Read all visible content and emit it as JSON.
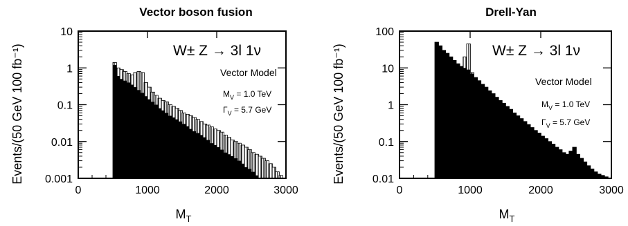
{
  "chart_data": [
    {
      "type": "bar",
      "title": "Vector boson fusion",
      "process": "W± Z → 3l 1ν",
      "model": "Vector Model",
      "mass_label": "M",
      "mass_sub": "V",
      "mass_value": " = 1.0 TeV",
      "width_label": "Γ",
      "width_sub": "V",
      "width_value": " = 5.7 GeV",
      "xlabel": "M",
      "xlabel_sub": "T",
      "ylabel": "Events/(50 GeV 100 fb⁻¹)",
      "yscale": "log",
      "xlim": [
        0,
        3000
      ],
      "ylim": [
        0.001,
        10
      ],
      "xticks": [
        "0",
        "1000",
        "2000",
        "3000"
      ],
      "yticks": [
        "10",
        "1",
        "0.1",
        "0.01",
        "0.001"
      ],
      "bin_edges_start": 500,
      "bin_width": 50,
      "series": [
        {
          "fill": "black",
          "values": [
            1.2,
            0.6,
            0.5,
            0.45,
            0.4,
            0.35,
            0.3,
            0.25,
            0.21,
            0.17,
            0.14,
            0.12,
            0.1,
            0.08,
            0.07,
            0.06,
            0.05,
            0.045,
            0.04,
            0.035,
            0.03,
            0.026,
            0.022,
            0.019,
            0.017,
            0.015,
            0.013,
            0.011,
            0.009,
            0.008,
            0.007,
            0.006,
            0.005,
            0.0045,
            0.004,
            0.0035,
            0.003,
            0.0025,
            0.002,
            0.0018,
            0.0015,
            0.0012,
            0.001,
            0.001,
            0.001,
            0.001,
            0.001,
            0.001,
            0.001,
            0.001
          ]
        },
        {
          "fill": "hatched",
          "values": [
            1.4,
            1.0,
            0.9,
            0.8,
            0.7,
            0.65,
            0.75,
            0.8,
            0.75,
            0.4,
            0.3,
            0.22,
            0.18,
            0.15,
            0.13,
            0.12,
            0.1,
            0.09,
            0.08,
            0.07,
            0.06,
            0.055,
            0.05,
            0.045,
            0.04,
            0.035,
            0.03,
            0.028,
            0.025,
            0.022,
            0.02,
            0.018,
            0.015,
            0.013,
            0.011,
            0.01,
            0.009,
            0.008,
            0.007,
            0.006,
            0.005,
            0.0045,
            0.004,
            0.0035,
            0.003,
            0.0025,
            0.002,
            0.0015,
            0.0012,
            0.001
          ]
        }
      ]
    },
    {
      "type": "bar",
      "title": "Drell-Yan",
      "process": "W± Z → 3l 1ν",
      "model": "Vector Model",
      "mass_label": "M",
      "mass_sub": "V",
      "mass_value": " = 1.0 TeV",
      "width_label": "Γ",
      "width_sub": "V",
      "width_value": " = 5.7 GeV",
      "xlabel": "M",
      "xlabel_sub": "T",
      "ylabel": "Events/(50 GeV 100 fb⁻¹)",
      "yscale": "log",
      "xlim": [
        0,
        3000
      ],
      "ylim": [
        0.01,
        100
      ],
      "xticks": [
        "0",
        "1000",
        "2000",
        "3000"
      ],
      "yticks": [
        "100",
        "10",
        "1",
        "0.1",
        "0.01"
      ],
      "bin_edges_start": 500,
      "bin_width": 50,
      "series": [
        {
          "fill": "black",
          "values": [
            50,
            40,
            30,
            25,
            20,
            16,
            13,
            11,
            10,
            9,
            7,
            5.5,
            4.5,
            3.6,
            3.0,
            2.4,
            2.0,
            1.6,
            1.3,
            1.1,
            0.9,
            0.75,
            0.6,
            0.5,
            0.42,
            0.35,
            0.29,
            0.24,
            0.2,
            0.17,
            0.14,
            0.12,
            0.1,
            0.085,
            0.07,
            0.06,
            0.05,
            0.045,
            0.055,
            0.07,
            0.045,
            0.035,
            0.028,
            0.022,
            0.018,
            0.015,
            0.013,
            0.012,
            0.011,
            0.01
          ]
        },
        {
          "fill": "hatched",
          "values": [
            50,
            40,
            30,
            25,
            20,
            16,
            13,
            11,
            20,
            45,
            7.5,
            5.5,
            4.5,
            3.6,
            3.0,
            2.4,
            2.0,
            1.6,
            1.3,
            1.1,
            0.9,
            0.75,
            0.6,
            0.5,
            0.42,
            0.35,
            0.29,
            0.24,
            0.2,
            0.17,
            0.14,
            0.12,
            0.1,
            0.085,
            0.07,
            0.06,
            0.05,
            0.045,
            0.055,
            0.07,
            0.045,
            0.035,
            0.028,
            0.022,
            0.018,
            0.015,
            0.013,
            0.012,
            0.011,
            0.01
          ]
        }
      ]
    }
  ]
}
